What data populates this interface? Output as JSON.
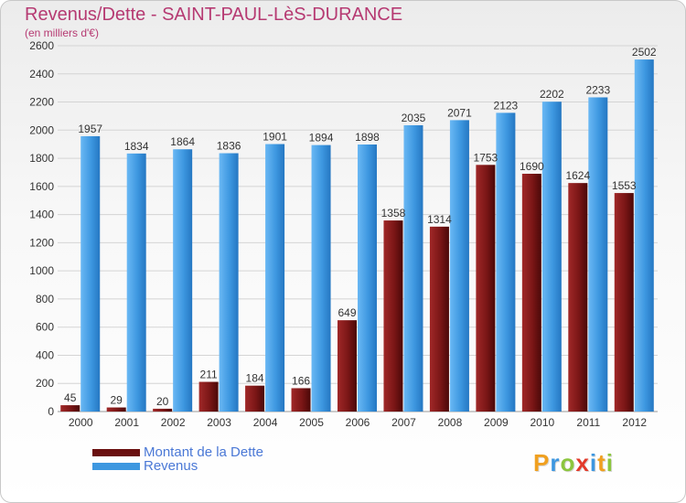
{
  "title": "Revenus/Dette - SAINT-PAUL-LèS-DURANCE",
  "subtitle": "(en milliers d'€)",
  "colors": {
    "dette": "#7a1616",
    "revenus": "#3d97e0",
    "title": "#b63a72",
    "legend_text": "#4a78d6"
  },
  "chart_data": {
    "type": "bar",
    "categories": [
      "2000",
      "2001",
      "2002",
      "2003",
      "2004",
      "2005",
      "2006",
      "2007",
      "2008",
      "2009",
      "2010",
      "2011",
      "2012"
    ],
    "series": [
      {
        "name": "Montant de la Dette",
        "values": [
          45,
          29,
          20,
          211,
          184,
          166,
          649,
          1358,
          1314,
          1753,
          1690,
          1624,
          1553
        ],
        "labels": [
          "45",
          "29",
          "20",
          "211",
          "184",
          "166",
          "649",
          "1358",
          "1314",
          "1753",
          "1690",
          "1624",
          "1553"
        ]
      },
      {
        "name": "Revenus",
        "values": [
          1957,
          1834,
          1864,
          1836,
          1901,
          1894,
          1898,
          2035,
          2071,
          2123,
          2202,
          2233,
          2502
        ],
        "labels": [
          "1957",
          "1834",
          "1864",
          "1836",
          "1901",
          "1894",
          "1898",
          "2035",
          "2071",
          "2123",
          "2202",
          "2233",
          "2502"
        ]
      }
    ],
    "yticks": [
      0,
      200,
      400,
      600,
      800,
      1000,
      1200,
      1400,
      1600,
      1800,
      2000,
      2200,
      2400,
      2600
    ],
    "ylim": [
      0,
      2600
    ],
    "grid": true
  },
  "legend": {
    "items": [
      {
        "label": "Montant de la Dette"
      },
      {
        "label": "Revenus"
      }
    ]
  },
  "logo": {
    "letters": [
      {
        "ch": "P",
        "color": "#f0a020"
      },
      {
        "ch": "r",
        "color": "#3d97e0"
      },
      {
        "ch": "o",
        "color": "#8cc63e"
      },
      {
        "ch": "x",
        "color": "#e23a2a"
      },
      {
        "ch": "i",
        "color": "#3d97e0"
      },
      {
        "ch": "t",
        "color": "#f0a020"
      },
      {
        "ch": "i",
        "color": "#8cc63e"
      }
    ]
  }
}
